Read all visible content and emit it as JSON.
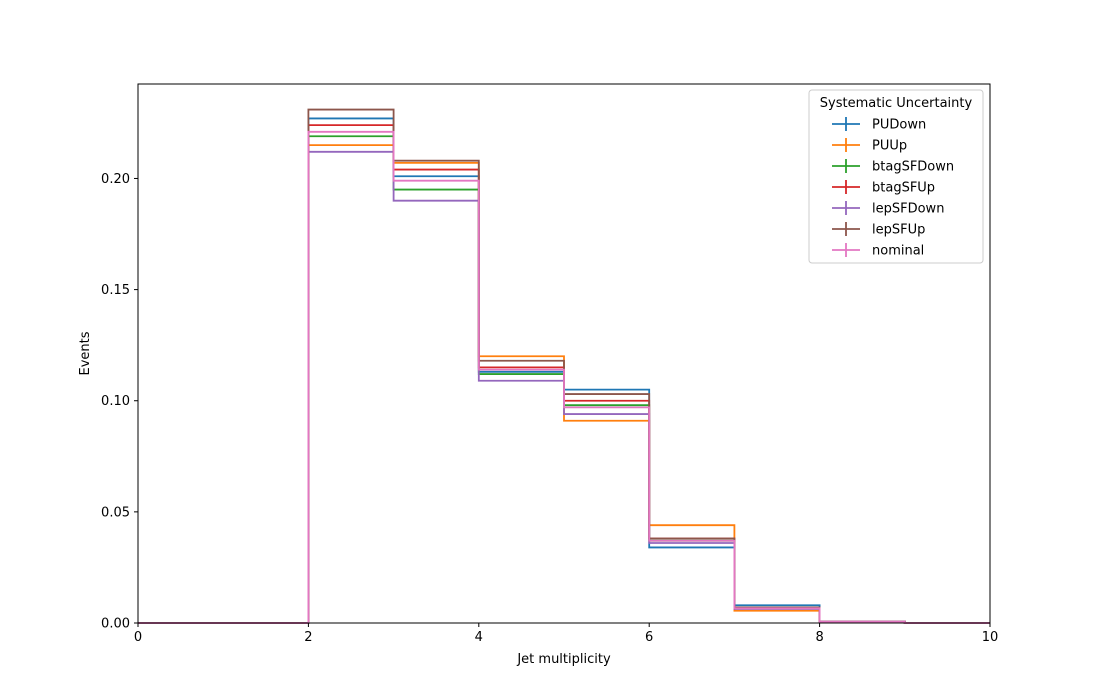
{
  "chart_data": {
    "type": "line",
    "drawstyle": "step",
    "title": "",
    "xlabel": "Jet multiplicity",
    "ylabel": "Events",
    "xlim": [
      0,
      10
    ],
    "ylim": [
      0,
      0.2425
    ],
    "xticks": [
      0,
      2,
      4,
      6,
      8,
      10
    ],
    "xtick_labels": [
      "0",
      "2",
      "4",
      "6",
      "8",
      "10"
    ],
    "yticks": [
      0,
      0.05,
      0.1,
      0.15,
      0.2
    ],
    "ytick_labels": [
      "0.00",
      "0.05",
      "0.10",
      "0.15",
      "0.20"
    ],
    "grid": false,
    "legend": {
      "title": "Systematic Uncertainty",
      "placement": "top-right"
    },
    "bin_edges": [
      0,
      1,
      2,
      3,
      4,
      5,
      6,
      7,
      8,
      9,
      10
    ],
    "series": [
      {
        "name": "PUDown",
        "color": "#1f77b4",
        "values": [
          0,
          0,
          0.227,
          0.201,
          0.113,
          0.105,
          0.034,
          0.008,
          0.0007,
          0
        ]
      },
      {
        "name": "PUUp",
        "color": "#ff7f0e",
        "values": [
          0,
          0,
          0.215,
          0.207,
          0.12,
          0.091,
          0.044,
          0.0055,
          0.0005,
          0
        ]
      },
      {
        "name": "btagSFDown",
        "color": "#2ca02c",
        "values": [
          0,
          0,
          0.219,
          0.195,
          0.112,
          0.098,
          0.037,
          0.0065,
          0.0006,
          0
        ]
      },
      {
        "name": "btagSFUp",
        "color": "#d62728",
        "values": [
          0,
          0,
          0.224,
          0.204,
          0.115,
          0.1,
          0.038,
          0.0068,
          0.0006,
          0
        ]
      },
      {
        "name": "lepSFDown",
        "color": "#9467bd",
        "values": [
          0,
          0,
          0.212,
          0.19,
          0.109,
          0.094,
          0.036,
          0.0063,
          0.0006,
          0
        ]
      },
      {
        "name": "lepSFUp",
        "color": "#8c564b",
        "values": [
          0,
          0,
          0.231,
          0.208,
          0.118,
          0.103,
          0.038,
          0.007,
          0.0006,
          0
        ]
      },
      {
        "name": "nominal",
        "color": "#e377c2",
        "values": [
          0,
          0,
          0.221,
          0.199,
          0.114,
          0.097,
          0.037,
          0.0066,
          0.0006,
          0
        ]
      }
    ]
  }
}
